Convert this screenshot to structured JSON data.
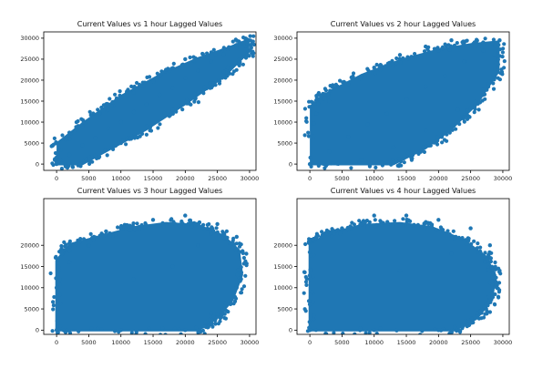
{
  "figure": {
    "background": "#ffffff"
  },
  "colors": {
    "series": "#1f77b4"
  },
  "chart_data": [
    {
      "type": "scatter",
      "title": "Current Values vs 1 hour Lagged Values",
      "xlabel": "",
      "ylabel": "",
      "xlim": [
        -2000,
        31000
      ],
      "ylim": [
        -1500,
        31500
      ],
      "xticks": [
        0,
        5000,
        10000,
        15000,
        20000,
        25000,
        30000
      ],
      "yticks": [
        0,
        5000,
        10000,
        15000,
        20000,
        25000,
        30000
      ],
      "xtick_labels": [
        "0",
        "5000",
        "10000",
        "15000",
        "20000",
        "25000",
        "30000"
      ],
      "ytick_labels": [
        "0",
        "5000",
        "10000",
        "15000",
        "20000",
        "25000",
        "30000"
      ],
      "grid": false,
      "series": [
        {
          "color": "#1f77b4",
          "pattern": "dense band along y = x",
          "points": [
            [
              0,
              0
            ],
            [
              2000,
              2200
            ],
            [
              4000,
              4500
            ],
            [
              6000,
              6200
            ],
            [
              8000,
              8500
            ],
            [
              10000,
              10000
            ],
            [
              12000,
              12400
            ],
            [
              14000,
              14200
            ],
            [
              16000,
              16500
            ],
            [
              18000,
              18200
            ],
            [
              20000,
              20500
            ],
            [
              22000,
              22300
            ],
            [
              24000,
              24500
            ],
            [
              26000,
              26200
            ],
            [
              28000,
              28400
            ],
            [
              29500,
              29800
            ],
            [
              2000,
              6000
            ],
            [
              4000,
              9000
            ],
            [
              8000,
              13000
            ],
            [
              12000,
              17000
            ],
            [
              16000,
              21000
            ],
            [
              20000,
              25000
            ],
            [
              6000,
              2000
            ],
            [
              10000,
              5000
            ],
            [
              14000,
              9000
            ],
            [
              18000,
              13000
            ],
            [
              22000,
              17000
            ],
            [
              26000,
              22000
            ]
          ]
        }
      ]
    },
    {
      "type": "scatter",
      "title": "Current Values vs 2 hour Lagged Values",
      "xlabel": "",
      "ylabel": "",
      "xlim": [
        -2000,
        31000
      ],
      "ylim": [
        -1500,
        31500
      ],
      "xticks": [
        0,
        5000,
        10000,
        15000,
        20000,
        25000,
        30000
      ],
      "yticks": [
        0,
        5000,
        10000,
        15000,
        20000,
        25000,
        30000
      ],
      "xtick_labels": [
        "0",
        "5000",
        "10000",
        "15000",
        "20000",
        "25000",
        "30000"
      ],
      "ytick_labels": [
        "0",
        "5000",
        "10000",
        "15000",
        "20000",
        "25000",
        "30000"
      ],
      "grid": false,
      "series": [
        {
          "color": "#1f77b4",
          "pattern": "wider band along y = x",
          "points": [
            [
              0,
              0
            ],
            [
              3000,
              3000
            ],
            [
              6000,
              6500
            ],
            [
              9000,
              9500
            ],
            [
              12000,
              12000
            ],
            [
              15000,
              15500
            ],
            [
              18000,
              18500
            ],
            [
              21000,
              21000
            ],
            [
              24000,
              24500
            ],
            [
              27000,
              27000
            ],
            [
              29500,
              29500
            ],
            [
              1000,
              12000
            ],
            [
              3000,
              15000
            ],
            [
              6000,
              19000
            ],
            [
              10000,
              23000
            ],
            [
              14000,
              26000
            ],
            [
              18000,
              28000
            ],
            [
              22000,
              29500
            ],
            [
              8000,
              1000
            ],
            [
              13000,
              4000
            ],
            [
              18000,
              8000
            ],
            [
              23000,
              13000
            ],
            [
              27000,
              18000
            ],
            [
              29000,
              24000
            ]
          ]
        }
      ]
    },
    {
      "type": "scatter",
      "title": "Current Values vs 3 hour Lagged Values",
      "xlabel": "",
      "ylabel": "",
      "xlim": [
        -2000,
        31000
      ],
      "ylim": [
        -1000,
        31000
      ],
      "xticks": [
        0,
        5000,
        10000,
        15000,
        20000,
        25000,
        30000
      ],
      "yticks": [
        0,
        5000,
        10000,
        15000,
        20000
      ],
      "xtick_labels": [
        "0",
        "5000",
        "10000",
        "15000",
        "20000",
        "25000",
        "30000"
      ],
      "ytick_labels": [
        "0",
        "5000",
        "10000",
        "15000",
        "20000"
      ],
      "grid": false,
      "series": [
        {
          "color": "#1f77b4",
          "pattern": "broad cloud filling the lower-left area",
          "points": [
            [
              0,
              0
            ],
            [
              2000,
              16000
            ],
            [
              5000,
              20000
            ],
            [
              10000,
              24000
            ],
            [
              15000,
              26000
            ],
            [
              20000,
              27000
            ],
            [
              25000,
              25000
            ],
            [
              28000,
              22000
            ],
            [
              29500,
              18000
            ],
            [
              28000,
              10000
            ],
            [
              24000,
              4000
            ],
            [
              20000,
              0
            ],
            [
              10000,
              0
            ],
            [
              0,
              10000
            ],
            [
              12000,
              12000
            ],
            [
              18000,
              15000
            ],
            [
              22000,
              20000
            ]
          ]
        }
      ]
    },
    {
      "type": "scatter",
      "title": "Current Values vs 4 hour Lagged Values",
      "xlabel": "",
      "ylabel": "",
      "xlim": [
        -2000,
        31000
      ],
      "ylim": [
        -1000,
        31000
      ],
      "xticks": [
        0,
        5000,
        10000,
        15000,
        20000,
        25000,
        30000
      ],
      "yticks": [
        0,
        5000,
        10000,
        15000,
        20000
      ],
      "xtick_labels": [
        "0",
        "5000",
        "10000",
        "15000",
        "20000",
        "25000",
        "30000"
      ],
      "ytick_labels": [
        "0",
        "5000",
        "10000",
        "15000",
        "20000"
      ],
      "grid": false,
      "series": [
        {
          "color": "#1f77b4",
          "pattern": "broad cloud, nearly uncorrelated",
          "points": [
            [
              0,
              0
            ],
            [
              1000,
              22000
            ],
            [
              5000,
              24000
            ],
            [
              10000,
              27000
            ],
            [
              15000,
              27000
            ],
            [
              20000,
              26000
            ],
            [
              25000,
              24000
            ],
            [
              28000,
              20000
            ],
            [
              29500,
              14000
            ],
            [
              28000,
              7000
            ],
            [
              24000,
              2000
            ],
            [
              20000,
              0
            ],
            [
              10000,
              0
            ],
            [
              0,
              12000
            ],
            [
              14000,
              14000
            ],
            [
              22000,
              18000
            ]
          ]
        }
      ]
    }
  ]
}
